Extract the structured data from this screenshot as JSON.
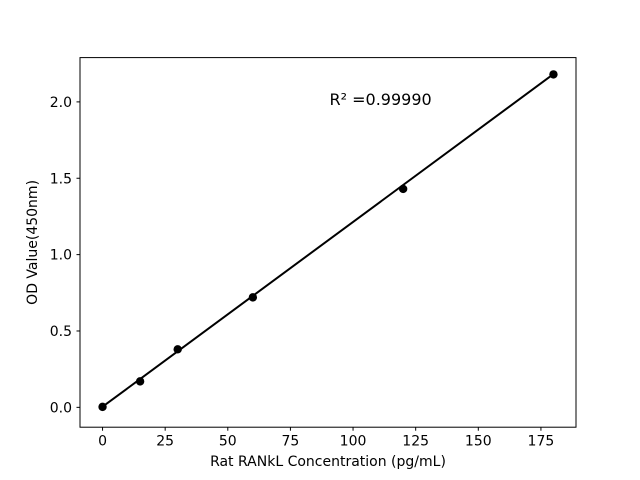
{
  "chart_data": {
    "type": "scatter",
    "title": "",
    "xlabel": "Rat RANkL Concentration (pg/mL)",
    "ylabel": "OD Value(450nm)",
    "annotation": {
      "text": "R² =0.99990",
      "x": 111,
      "y": 2.0
    },
    "x": [
      0,
      15,
      30,
      60,
      120,
      180
    ],
    "y": [
      0.003,
      0.17,
      0.38,
      0.72,
      1.43,
      2.18
    ],
    "fit_line": {
      "x": [
        0,
        180
      ],
      "y": [
        0.004,
        2.182
      ]
    },
    "xlim": [
      -9,
      189
    ],
    "ylim": [
      -0.13,
      2.29
    ],
    "xticks": [
      {
        "value": 0,
        "label": "0"
      },
      {
        "value": 25,
        "label": "25"
      },
      {
        "value": 50,
        "label": "50"
      },
      {
        "value": 75,
        "label": "75"
      },
      {
        "value": 100,
        "label": "100"
      },
      {
        "value": 125,
        "label": "125"
      },
      {
        "value": 150,
        "label": "150"
      },
      {
        "value": 175,
        "label": "175"
      }
    ],
    "yticks": [
      {
        "value": 0.0,
        "label": "0.0"
      },
      {
        "value": 0.5,
        "label": "0.5"
      },
      {
        "value": 1.0,
        "label": "1.0"
      },
      {
        "value": 1.5,
        "label": "1.5"
      },
      {
        "value": 2.0,
        "label": "2.0"
      }
    ],
    "grid": false,
    "legend": null,
    "marker_color": "#000000",
    "line_color": "#000000",
    "spine_color": "#000000",
    "background": "#ffffff"
  }
}
